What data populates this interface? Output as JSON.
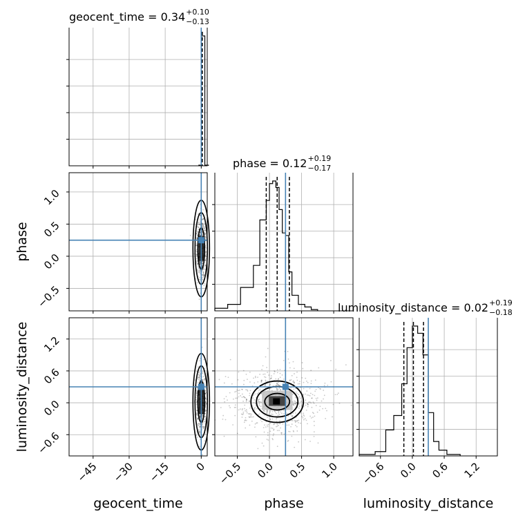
{
  "chart_data": {
    "type": "corner",
    "parameters": [
      "geocent_time",
      "phase",
      "luminosity_distance"
    ],
    "truths": {
      "geocent_time": 0.0,
      "phase": 0.25,
      "luminosity_distance": 0.3
    },
    "axis_ranges": {
      "geocent_time": [
        -55,
        2.5
      ],
      "phase": [
        -0.85,
        1.3
      ],
      "luminosity_distance": [
        -1.0,
        1.6
      ]
    },
    "ticks": {
      "geocent_time": {
        "values": [
          -45,
          -30,
          -15,
          0
        ],
        "labels": [
          "−45",
          "−30",
          "−15",
          "0"
        ]
      },
      "phase": {
        "values": [
          -0.5,
          0.0,
          0.5,
          1.0
        ],
        "labels": [
          "−0.5",
          "0.0",
          "0.5",
          "1.0"
        ]
      },
      "luminosity_distance": {
        "values": [
          -0.6,
          0.0,
          0.6,
          1.2
        ],
        "labels": [
          "−0.6",
          "0.0",
          "0.6",
          "1.2"
        ]
      }
    },
    "titles": [
      {
        "param": "geocent_time",
        "prefix": "geocent_time = 0.34",
        "plus": "+0.10",
        "minus": "−0.13"
      },
      {
        "param": "phase",
        "prefix": "phase = 0.12",
        "plus": "+0.19",
        "minus": "−0.17"
      },
      {
        "param": "luminosity_distance",
        "prefix": "luminosity_distance = 0.02",
        "plus": "+0.19",
        "minus": "−0.18"
      }
    ],
    "quantiles": {
      "geocent_time": [
        0.21,
        0.34,
        0.44
      ],
      "phase": [
        -0.05,
        0.12,
        0.31
      ],
      "luminosity_distance": [
        -0.16,
        0.02,
        0.21
      ]
    },
    "histograms": {
      "geocent_time": {
        "edges": [
          -1.0,
          0.0,
          1.5,
          3.0
        ],
        "counts": [
          0.5,
          100,
          0.5
        ]
      },
      "phase": {
        "edges": [
          -0.85,
          -0.65,
          -0.45,
          -0.35,
          -0.25,
          -0.15,
          -0.05,
          0.0,
          0.05,
          0.1,
          0.15,
          0.2,
          0.25,
          0.3,
          0.35,
          0.45,
          0.55,
          0.65,
          0.75
        ],
        "counts": [
          2,
          5,
          18,
          18,
          35,
          70,
          85,
          98,
          100,
          95,
          78,
          60,
          58,
          30,
          12,
          5,
          3,
          1
        ]
      },
      "luminosity_distance": {
        "edges": [
          -1.0,
          -0.7,
          -0.5,
          -0.35,
          -0.2,
          -0.1,
          0.0,
          0.1,
          0.2,
          0.3,
          0.4,
          0.5,
          0.65,
          0.9
        ],
        "counts": [
          1,
          3,
          18,
          28,
          50,
          75,
          90,
          85,
          70,
          30,
          10,
          4,
          1
        ]
      }
    },
    "contour_levels": [
      0.39,
      0.86,
      0.99
    ],
    "grid": true
  }
}
